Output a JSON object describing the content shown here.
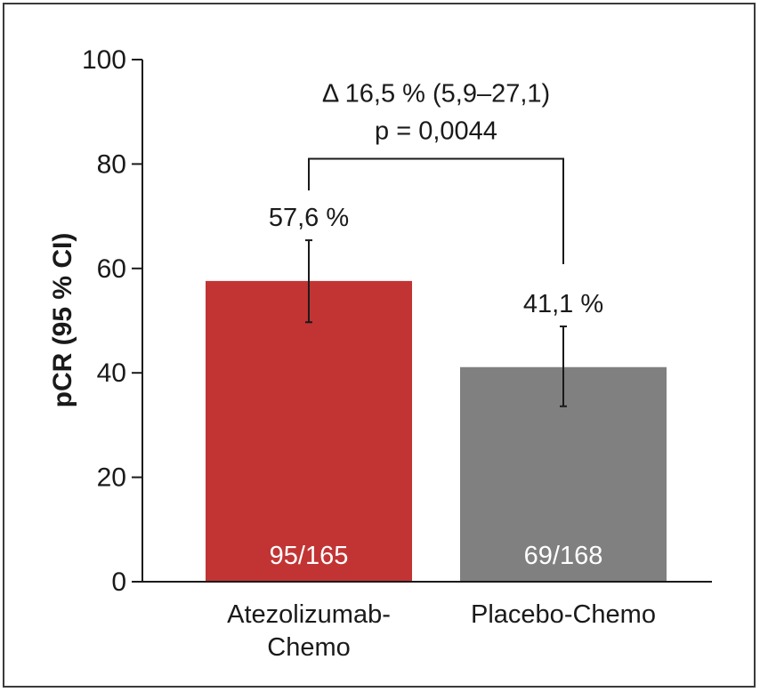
{
  "chart_data": {
    "type": "bar",
    "ylabel": "pCR (95 % CI)",
    "ylim": [
      0,
      100
    ],
    "yticks": [
      "0",
      "20",
      "40",
      "60",
      "80",
      "100"
    ],
    "categories": [
      "Atezolizumab-\nChemo",
      "Placebo-Chemo"
    ],
    "category_lines": [
      [
        "Atezolizumab-",
        "Chemo"
      ],
      [
        "Placebo-Chemo"
      ]
    ],
    "values": [
      57.6,
      41.1
    ],
    "ci_low": [
      49.7,
      33.6
    ],
    "ci_high": [
      65.4,
      48.9
    ],
    "value_labels": [
      "57,6 %",
      "41,1 %"
    ],
    "counts": [
      "95/165",
      "69/168"
    ],
    "colors": [
      "#c23434",
      "#808080"
    ],
    "comparison": {
      "line1": "Δ 16,5 % (5,9–27,1)",
      "line2": "p = 0,0044",
      "bracket_y": 81
    }
  }
}
